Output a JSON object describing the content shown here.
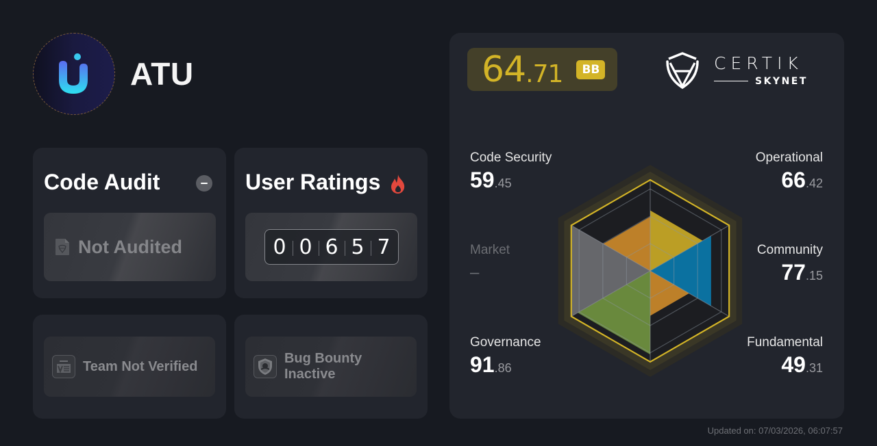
{
  "project": {
    "name": "ATU",
    "logo": "atu-u-logo"
  },
  "code_audit": {
    "title": "Code Audit",
    "status_icon": "minus-circle-icon",
    "status": "Not Audited",
    "status_doc_icon": "audit-document-icon"
  },
  "user_ratings": {
    "title": "User Ratings",
    "icon": "fire-icon",
    "digits": [
      "0",
      "0",
      "6",
      "5",
      "7"
    ]
  },
  "team": {
    "icon": "kyc-card-icon",
    "status": "Team Not Verified"
  },
  "bug_bounty": {
    "icon": "bug-bounty-shield-icon",
    "status": "Bug Bounty Inactive"
  },
  "score": {
    "integer": "64",
    "decimal": ".71",
    "grade": "BB",
    "color": "#d3b427"
  },
  "brand": {
    "name": "CERTIK",
    "sub": "SKYNET"
  },
  "metrics": {
    "code_security": {
      "label": "Code Security",
      "int": "59",
      "dec": ".45"
    },
    "operational": {
      "label": "Operational",
      "int": "66",
      "dec": ".42"
    },
    "market": {
      "label": "Market",
      "int": "–",
      "dec": ""
    },
    "community": {
      "label": "Community",
      "int": "77",
      "dec": ".15"
    },
    "governance": {
      "label": "Governance",
      "int": "91",
      "dec": ".86"
    },
    "fundamental": {
      "label": "Fundamental",
      "int": "49",
      "dec": ".31"
    }
  },
  "chart_data": {
    "type": "radar",
    "title": "Security Score Breakdown",
    "categories": [
      "Operational",
      "Community",
      "Fundamental",
      "Governance",
      "Market",
      "Code Security"
    ],
    "values": [
      66.42,
      77.15,
      49.31,
      91.86,
      null,
      59.45
    ],
    "colors": [
      "#c4a526",
      "#0b76a8",
      "#c6862a",
      "#6e8f3f",
      "#6a6b70",
      "#c6862a"
    ],
    "range": [
      0,
      100
    ],
    "grid_levels": 3,
    "outline_color": "#d3b427"
  },
  "footer": {
    "updated": "Updated on: 07/03/2026, 06:07:57"
  }
}
